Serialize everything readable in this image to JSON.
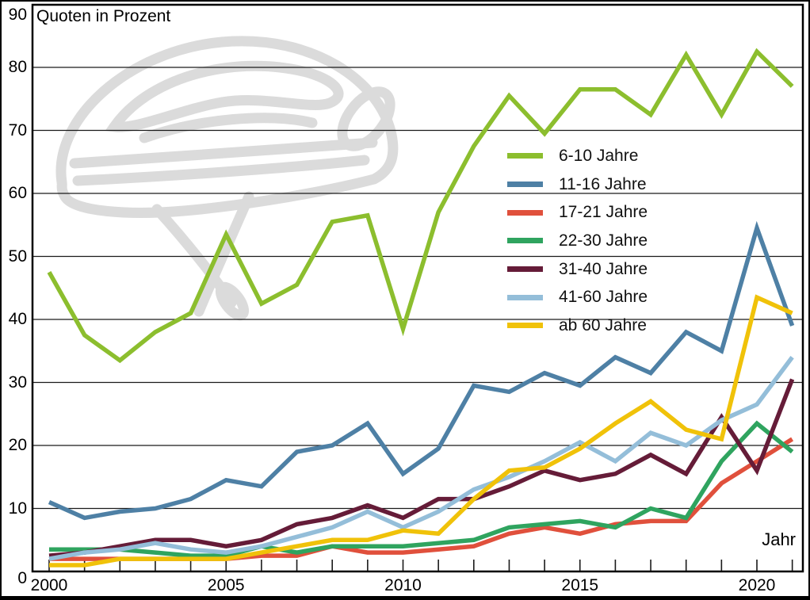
{
  "chart_data": {
    "type": "line",
    "title": "Quoten in Prozent",
    "xlabel": "Jahr",
    "ylabel": "Quoten in Prozent",
    "ylim": [
      0,
      90
    ],
    "xlim": [
      2000,
      2021
    ],
    "grid": "horizontal",
    "legend_position": "inside-right-upper",
    "watermark": "bicycle-helmet",
    "y_ticks": [
      90,
      80,
      70,
      60,
      50,
      40,
      30,
      20,
      10,
      0
    ],
    "x_tick_labels": [
      "2000",
      "2005",
      "2010",
      "2015",
      "2020"
    ],
    "x": [
      2000,
      2001,
      2002,
      2003,
      2004,
      2005,
      2006,
      2007,
      2008,
      2009,
      2010,
      2011,
      2012,
      2013,
      2014,
      2015,
      2016,
      2017,
      2018,
      2019,
      2020,
      2021
    ],
    "series": [
      {
        "name": "6-10 Jahre",
        "color": "#8CBE2E",
        "values": [
          47.5,
          37.5,
          33.5,
          38,
          41,
          53.5,
          42.5,
          45.5,
          55.5,
          56.5,
          38.5,
          57,
          67.5,
          75.5,
          69.5,
          76.5,
          76.5,
          72.5,
          82,
          72.5,
          82.5,
          77
        ]
      },
      {
        "name": "11-16 Jahre",
        "color": "#4E80A5",
        "values": [
          11,
          8.5,
          9.5,
          10,
          11.5,
          14.5,
          13.5,
          19,
          20,
          23.5,
          15.5,
          19.5,
          29.5,
          28.5,
          31.5,
          29.5,
          34,
          31.5,
          38,
          35,
          54.5,
          39
        ]
      },
      {
        "name": "17-21 Jahre",
        "color": "#E0503C",
        "values": [
          2,
          2,
          2,
          2,
          2,
          2,
          2.5,
          2.5,
          4,
          3,
          3,
          3.5,
          4,
          6,
          7,
          6,
          7.5,
          8,
          8,
          14,
          17.5,
          21
        ]
      },
      {
        "name": "22-30 Jahre",
        "color": "#2FA45F",
        "values": [
          3.5,
          3.5,
          3.5,
          3,
          2.5,
          2.5,
          4,
          3,
          4,
          4,
          4,
          4.5,
          5,
          7,
          7.5,
          8,
          7,
          10,
          8.5,
          17.5,
          23.5,
          19
        ]
      },
      {
        "name": "31-40 Jahre",
        "color": "#651C38",
        "values": [
          2.5,
          3,
          4,
          5,
          5,
          4,
          5,
          7.5,
          8.5,
          10.5,
          8.5,
          11.5,
          11.5,
          13.5,
          16,
          14.5,
          15.5,
          18.5,
          15.5,
          24.5,
          16,
          30.5
        ]
      },
      {
        "name": "41-60 Jahre",
        "color": "#94BED9",
        "values": [
          2,
          3,
          3.5,
          4.5,
          3.5,
          3,
          4,
          5.5,
          7,
          9.5,
          7,
          9.5,
          13,
          15,
          17.5,
          20.5,
          17.5,
          22,
          20,
          24,
          26.5,
          34
        ]
      },
      {
        "name": "ab 60 Jahre",
        "color": "#F0C209",
        "values": [
          1,
          1,
          2,
          2,
          2,
          2,
          3,
          4,
          5,
          5,
          6.5,
          6,
          11.5,
          16,
          16.5,
          19.5,
          23.5,
          27,
          22.5,
          21,
          43.5,
          41
        ]
      }
    ]
  }
}
